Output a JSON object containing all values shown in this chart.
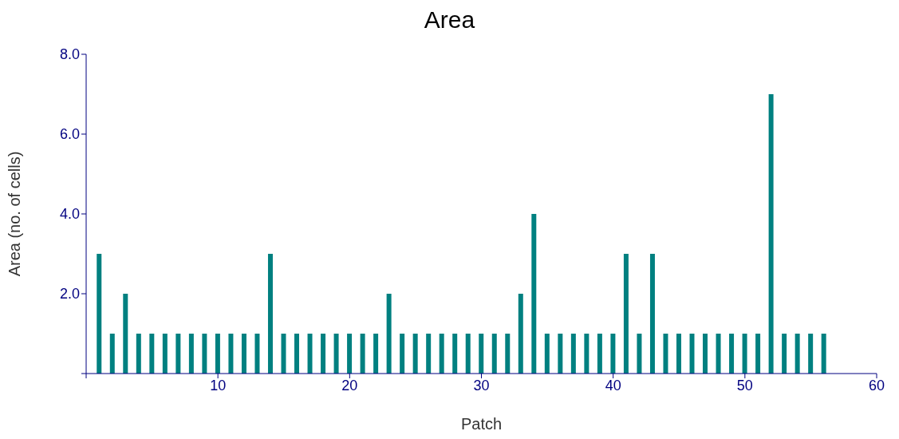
{
  "chart_data": {
    "type": "bar",
    "title": "Area",
    "xlabel": "Patch",
    "ylabel": "Area (no. of cells)",
    "x": [
      1,
      2,
      3,
      4,
      5,
      6,
      7,
      8,
      9,
      10,
      11,
      12,
      13,
      14,
      15,
      16,
      17,
      18,
      19,
      20,
      21,
      22,
      23,
      24,
      25,
      26,
      27,
      28,
      29,
      30,
      31,
      32,
      33,
      34,
      35,
      36,
      37,
      38,
      39,
      40,
      41,
      42,
      43,
      44,
      45,
      46,
      47,
      48,
      49,
      50,
      51,
      52,
      53,
      54,
      55,
      56
    ],
    "values": [
      3,
      1,
      2,
      1,
      1,
      1,
      1,
      1,
      1,
      1,
      1,
      1,
      1,
      3,
      1,
      1,
      1,
      1,
      1,
      1,
      1,
      1,
      2,
      1,
      1,
      1,
      1,
      1,
      1,
      1,
      1,
      1,
      2,
      4,
      1,
      1,
      1,
      1,
      1,
      1,
      3,
      1,
      3,
      1,
      1,
      1,
      1,
      1,
      1,
      1,
      1,
      7,
      1,
      1,
      1,
      1
    ],
    "color": "#008080",
    "xlim": [
      0,
      60
    ],
    "xticks": [
      {
        "value": 0,
        "label": null
      },
      10,
      20,
      30,
      40,
      50,
      60
    ],
    "ylim": [
      0,
      8
    ],
    "yticks": [
      {
        "value": 0,
        "label": null
      },
      {
        "value": 2,
        "label": "2.0"
      },
      {
        "value": 4,
        "label": "4.0"
      },
      {
        "value": 6,
        "label": "6.0"
      },
      {
        "value": 8,
        "label": "8.0"
      }
    ],
    "grid": false
  }
}
